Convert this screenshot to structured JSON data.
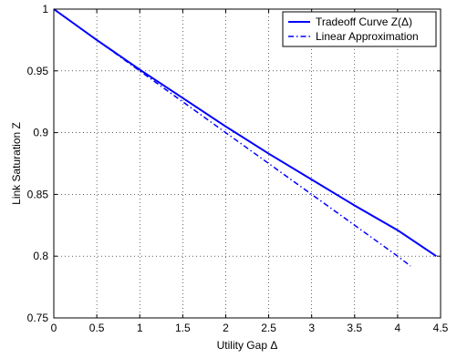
{
  "chart_data": {
    "type": "line",
    "xlabel": "Utility Gap Δ",
    "ylabel": "Link Saturation Z",
    "xlim": [
      0,
      4.5
    ],
    "ylim": [
      0.75,
      1.0
    ],
    "xticks": [
      "0",
      "0.5",
      "1",
      "1.5",
      "2",
      "2.5",
      "3",
      "3.5",
      "4",
      "4.5"
    ],
    "yticks": [
      "0.75",
      "0.8",
      "0.85",
      "0.9",
      "0.95",
      "1"
    ],
    "grid": true,
    "legend_position": "top-right",
    "series": [
      {
        "name": "Tradeoff Curve Z(Δ)",
        "style": "solid",
        "color": "#0000ff",
        "x": [
          0,
          0.5,
          1.0,
          1.5,
          2.0,
          2.5,
          3.0,
          3.5,
          4.0,
          4.45
        ],
        "y": [
          1.0,
          0.975,
          0.951,
          0.928,
          0.905,
          0.883,
          0.862,
          0.841,
          0.821,
          0.8
        ]
      },
      {
        "name": "Linear Approximation",
        "style": "dashdot",
        "color": "#0000ff",
        "x": [
          0,
          0.5,
          1.0,
          1.5,
          2.0,
          2.5,
          3.0,
          3.5,
          4.0,
          4.15
        ],
        "y": [
          1.0,
          0.975,
          0.95,
          0.925,
          0.9,
          0.875,
          0.85,
          0.825,
          0.8,
          0.792
        ]
      }
    ]
  }
}
